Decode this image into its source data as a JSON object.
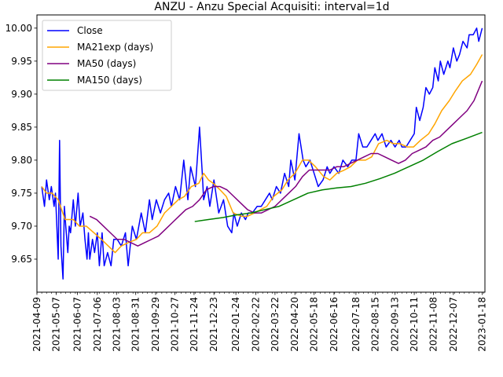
{
  "chart_data": {
    "type": "line",
    "title": "ANZU - Anzu Special Acquisiti: interval=1d",
    "xlabel": "",
    "ylabel": "",
    "x_range": [
      "2021-04-09",
      "2023-01-22"
    ],
    "ylim": [
      9.6,
      10.02
    ],
    "y_ticks": [
      9.65,
      9.7,
      9.75,
      9.8,
      9.85,
      9.9,
      9.95,
      10.0
    ],
    "x_tick_labels": [
      "2021-04-09",
      "2021-05-07",
      "2021-06-07",
      "2021-07-06",
      "2021-08-03",
      "2021-08-31",
      "2021-09-29",
      "2021-10-27",
      "2021-11-24",
      "2021-12-23",
      "2022-01-24",
      "2022-02-22",
      "2022-03-22",
      "2022-04-20",
      "2022-05-18",
      "2022-06-16",
      "2022-07-18",
      "2022-08-15",
      "2022-09-13",
      "2022-10-11",
      "2022-11-08",
      "2022-12-07",
      "2023-01-18"
    ],
    "grid": false,
    "legend": "top-left",
    "colors": {
      "Close": "#0000ff",
      "MA21exp (days)": "#ffa500",
      "MA50 (days)": "#800080",
      "MA150 (days)": "#008000"
    },
    "series": [
      {
        "name": "Close",
        "x": [
          "2021-04-16",
          "2021-04-20",
          "2021-04-23",
          "2021-04-27",
          "2021-04-30",
          "2021-05-04",
          "2021-05-06",
          "2021-05-10",
          "2021-05-12",
          "2021-05-14",
          "2021-05-17",
          "2021-05-19",
          "2021-05-21",
          "2021-05-24",
          "2021-05-26",
          "2021-05-28",
          "2021-06-01",
          "2021-06-04",
          "2021-06-08",
          "2021-06-11",
          "2021-06-15",
          "2021-06-18",
          "2021-06-21",
          "2021-06-23",
          "2021-06-25",
          "2021-06-29",
          "2021-07-02",
          "2021-07-06",
          "2021-07-09",
          "2021-07-13",
          "2021-07-16",
          "2021-07-21",
          "2021-07-26",
          "2021-07-30",
          "2021-08-04",
          "2021-08-10",
          "2021-08-16",
          "2021-08-20",
          "2021-08-26",
          "2021-09-01",
          "2021-09-08",
          "2021-09-14",
          "2021-09-20",
          "2021-09-24",
          "2021-09-30",
          "2021-10-06",
          "2021-10-12",
          "2021-10-18",
          "2021-10-22",
          "2021-10-28",
          "2021-11-03",
          "2021-11-09",
          "2021-11-15",
          "2021-11-19",
          "2021-11-26",
          "2021-12-02",
          "2021-12-06",
          "2021-12-08",
          "2021-12-13",
          "2021-12-17",
          "2021-12-23",
          "2021-12-30",
          "2022-01-06",
          "2022-01-12",
          "2022-01-18",
          "2022-01-21",
          "2022-01-26",
          "2022-02-01",
          "2022-02-07",
          "2022-02-11",
          "2022-02-17",
          "2022-02-24",
          "2022-03-02",
          "2022-03-08",
          "2022-03-14",
          "2022-03-18",
          "2022-03-24",
          "2022-03-30",
          "2022-04-05",
          "2022-04-11",
          "2022-04-14",
          "2022-04-20",
          "2022-04-26",
          "2022-05-02",
          "2022-05-06",
          "2022-05-12",
          "2022-05-18",
          "2022-05-24",
          "2022-05-31",
          "2022-06-06",
          "2022-06-10",
          "2022-06-16",
          "2022-06-23",
          "2022-06-29",
          "2022-07-06",
          "2022-07-12",
          "2022-07-18",
          "2022-07-22",
          "2022-07-28",
          "2022-08-03",
          "2022-08-09",
          "2022-08-15",
          "2022-08-19",
          "2022-08-25",
          "2022-08-31",
          "2022-09-07",
          "2022-09-13",
          "2022-09-19",
          "2022-09-23",
          "2022-09-29",
          "2022-10-05",
          "2022-10-11",
          "2022-10-14",
          "2022-10-19",
          "2022-10-24",
          "2022-10-28",
          "2022-11-02",
          "2022-11-07",
          "2022-11-10",
          "2022-11-15",
          "2022-11-18",
          "2022-11-23",
          "2022-11-29",
          "2022-12-02",
          "2022-12-07",
          "2022-12-12",
          "2022-12-16",
          "2022-12-21",
          "2022-12-27",
          "2022-12-30",
          "2023-01-05",
          "2023-01-10",
          "2023-01-13",
          "2023-01-18"
        ],
        "values": [
          9.76,
          9.73,
          9.77,
          9.74,
          9.76,
          9.73,
          9.75,
          9.65,
          9.83,
          9.67,
          9.62,
          9.73,
          9.7,
          9.66,
          9.7,
          9.69,
          9.74,
          9.7,
          9.75,
          9.7,
          9.72,
          9.68,
          9.65,
          9.69,
          9.65,
          9.68,
          9.66,
          9.69,
          9.64,
          9.69,
          9.64,
          9.66,
          9.64,
          9.68,
          9.68,
          9.67,
          9.69,
          9.64,
          9.7,
          9.68,
          9.72,
          9.69,
          9.74,
          9.71,
          9.74,
          9.72,
          9.74,
          9.75,
          9.73,
          9.76,
          9.74,
          9.8,
          9.74,
          9.79,
          9.76,
          9.85,
          9.78,
          9.74,
          9.76,
          9.73,
          9.77,
          9.72,
          9.74,
          9.7,
          9.69,
          9.72,
          9.7,
          9.72,
          9.71,
          9.72,
          9.72,
          9.73,
          9.73,
          9.74,
          9.75,
          9.74,
          9.76,
          9.75,
          9.78,
          9.76,
          9.8,
          9.77,
          9.84,
          9.8,
          9.79,
          9.8,
          9.78,
          9.76,
          9.77,
          9.79,
          9.78,
          9.79,
          9.78,
          9.8,
          9.79,
          9.8,
          9.8,
          9.84,
          9.82,
          9.82,
          9.83,
          9.84,
          9.83,
          9.84,
          9.82,
          9.83,
          9.82,
          9.83,
          9.82,
          9.82,
          9.83,
          9.84,
          9.88,
          9.86,
          9.88,
          9.91,
          9.9,
          9.91,
          9.94,
          9.92,
          9.95,
          9.93,
          9.95,
          9.94,
          9.97,
          9.95,
          9.96,
          9.98,
          9.97,
          9.99,
          9.99,
          10.0,
          9.98,
          10.0
        ]
      },
      {
        "name": "MA21exp (days)",
        "x": [
          "2021-04-16",
          "2021-04-23",
          "2021-05-01",
          "2021-05-10",
          "2021-05-20",
          "2021-06-01",
          "2021-06-10",
          "2021-06-20",
          "2021-07-01",
          "2021-07-12",
          "2021-07-22",
          "2021-08-01",
          "2021-08-10",
          "2021-08-20",
          "2021-09-01",
          "2021-09-10",
          "2021-09-20",
          "2021-10-01",
          "2021-10-12",
          "2021-10-22",
          "2021-11-01",
          "2021-11-10",
          "2021-11-20",
          "2021-12-01",
          "2021-12-08",
          "2021-12-15",
          "2021-12-22",
          "2022-01-01",
          "2022-01-10",
          "2022-01-20",
          "2022-02-01",
          "2022-02-10",
          "2022-02-20",
          "2022-03-01",
          "2022-03-10",
          "2022-03-20",
          "2022-04-01",
          "2022-04-10",
          "2022-04-20",
          "2022-05-01",
          "2022-05-10",
          "2022-05-20",
          "2022-06-01",
          "2022-06-10",
          "2022-06-20",
          "2022-07-01",
          "2022-07-10",
          "2022-07-20",
          "2022-08-01",
          "2022-08-10",
          "2022-08-20",
          "2022-09-01",
          "2022-09-10",
          "2022-09-20",
          "2022-10-01",
          "2022-10-10",
          "2022-10-20",
          "2022-11-01",
          "2022-11-10",
          "2022-11-20",
          "2022-12-01",
          "2022-12-10",
          "2022-12-20",
          "2023-01-01",
          "2023-01-10",
          "2023-01-18"
        ],
        "values": [
          9.76,
          9.75,
          9.75,
          9.74,
          9.71,
          9.71,
          9.7,
          9.7,
          9.69,
          9.68,
          9.67,
          9.66,
          9.67,
          9.675,
          9.68,
          9.69,
          9.69,
          9.7,
          9.72,
          9.73,
          9.74,
          9.745,
          9.76,
          9.765,
          9.78,
          9.77,
          9.765,
          9.755,
          9.745,
          9.72,
          9.715,
          9.715,
          9.72,
          9.725,
          9.73,
          9.745,
          9.755,
          9.77,
          9.78,
          9.8,
          9.8,
          9.79,
          9.775,
          9.77,
          9.78,
          9.785,
          9.79,
          9.8,
          9.8,
          9.805,
          9.825,
          9.83,
          9.825,
          9.825,
          9.82,
          9.82,
          9.83,
          9.84,
          9.855,
          9.875,
          9.89,
          9.905,
          9.92,
          9.93,
          9.945,
          9.96
        ]
      },
      {
        "name": "MA50 (days)",
        "x": [
          "2021-06-25",
          "2021-07-05",
          "2021-07-15",
          "2021-07-25",
          "2021-08-04",
          "2021-08-14",
          "2021-08-24",
          "2021-09-03",
          "2021-09-13",
          "2021-09-23",
          "2021-10-03",
          "2021-10-13",
          "2021-10-23",
          "2021-11-02",
          "2021-11-12",
          "2021-11-22",
          "2021-12-02",
          "2021-12-12",
          "2021-12-22",
          "2022-01-01",
          "2022-01-11",
          "2022-01-21",
          "2022-01-31",
          "2022-02-10",
          "2022-02-20",
          "2022-03-02",
          "2022-03-12",
          "2022-03-22",
          "2022-04-01",
          "2022-04-11",
          "2022-04-21",
          "2022-05-01",
          "2022-05-11",
          "2022-05-21",
          "2022-05-31",
          "2022-06-10",
          "2022-06-20",
          "2022-06-30",
          "2022-07-10",
          "2022-07-20",
          "2022-07-30",
          "2022-08-09",
          "2022-08-19",
          "2022-08-29",
          "2022-09-08",
          "2022-09-18",
          "2022-09-28",
          "2022-10-08",
          "2022-10-18",
          "2022-10-28",
          "2022-11-07",
          "2022-11-17",
          "2022-11-27",
          "2022-12-07",
          "2022-12-17",
          "2022-12-27",
          "2023-01-06",
          "2023-01-18"
        ],
        "values": [
          9.715,
          9.71,
          9.7,
          9.69,
          9.68,
          9.68,
          9.675,
          9.67,
          9.675,
          9.68,
          9.685,
          9.695,
          9.705,
          9.715,
          9.725,
          9.73,
          9.74,
          9.755,
          9.76,
          9.76,
          9.755,
          9.745,
          9.735,
          9.725,
          9.72,
          9.72,
          9.725,
          9.73,
          9.74,
          9.75,
          9.76,
          9.775,
          9.785,
          9.785,
          9.785,
          9.785,
          9.79,
          9.79,
          9.795,
          9.8,
          9.805,
          9.81,
          9.81,
          9.805,
          9.8,
          9.795,
          9.8,
          9.81,
          9.815,
          9.82,
          9.83,
          9.835,
          9.845,
          9.855,
          9.865,
          9.875,
          9.89,
          9.92
        ]
      },
      {
        "name": "MA150 (days)",
        "x": [
          "2021-11-25",
          "2021-12-15",
          "2022-01-05",
          "2022-01-25",
          "2022-02-15",
          "2022-03-07",
          "2022-03-28",
          "2022-04-18",
          "2022-05-09",
          "2022-05-30",
          "2022-06-20",
          "2022-07-11",
          "2022-08-01",
          "2022-08-22",
          "2022-09-12",
          "2022-10-03",
          "2022-10-24",
          "2022-11-14",
          "2022-12-05",
          "2022-12-26",
          "2023-01-18"
        ],
        "values": [
          9.707,
          9.71,
          9.713,
          9.717,
          9.72,
          9.725,
          9.73,
          9.74,
          9.75,
          9.755,
          9.758,
          9.76,
          9.765,
          9.772,
          9.78,
          9.79,
          9.8,
          9.813,
          9.825,
          9.833,
          9.842
        ]
      }
    ]
  }
}
